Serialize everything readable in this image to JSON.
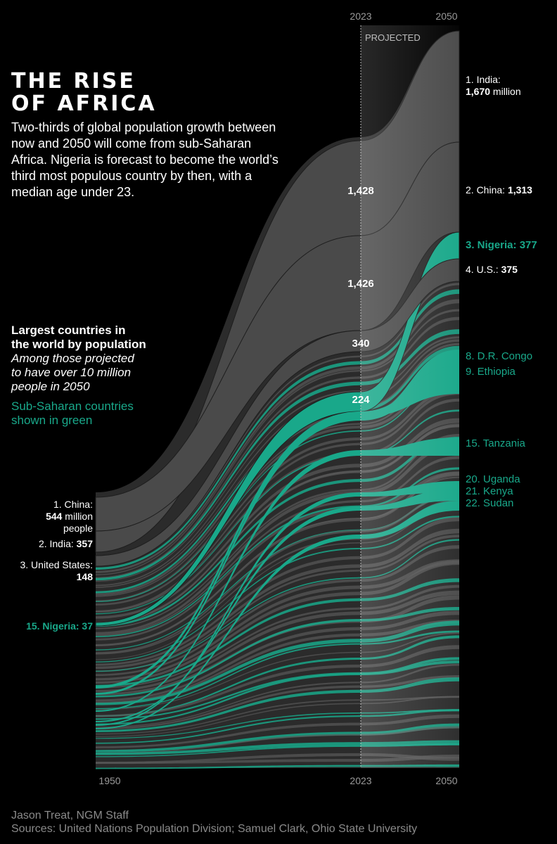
{
  "title_lines": [
    "THE RISE",
    "OF AFRICA"
  ],
  "intro": "Two-thirds of global population growth between now and 2050 will come from sub-Saharan Africa. Nigeria is forecast to become the world’s third most populous country by then, with a median age under 23.",
  "legend": {
    "title_lines": [
      "Largest countries in",
      "the world by population"
    ],
    "subtitle_lines": [
      "Among those projected",
      "to have over 10 million",
      "people in 2050"
    ],
    "green_note_lines": [
      "Sub-Saharan countries",
      "shown in green"
    ]
  },
  "credit": {
    "author": "Jason Treat, NGM Staff",
    "sources": "Sources: United Nations Population Division; Samuel Clark, Ohio State University"
  },
  "colors": {
    "background": "#000000",
    "stream_gray": "#4a4a4a",
    "sub_saharan_green": "#19a88a",
    "text_white": "#ffffff",
    "text_gray": "#8a8a8a"
  },
  "chart_data": {
    "type": "area",
    "projected_label": "PROJECTED",
    "x_ticks": [
      "1950",
      "2023",
      "2050"
    ],
    "top_ticks": [
      "2023",
      "2050"
    ],
    "units": "million people",
    "series": [
      {
        "name": "India",
        "values": [
          357,
          1428,
          1670
        ],
        "color": "gray"
      },
      {
        "name": "China",
        "values": [
          544,
          1426,
          1313
        ],
        "color": "gray"
      },
      {
        "name": "Nigeria",
        "values": [
          37,
          224,
          377
        ],
        "color": "green"
      },
      {
        "name": "U.S.",
        "values": [
          148,
          340,
          375
        ],
        "color": "gray"
      },
      {
        "name": "D.R. Congo",
        "color": "green"
      },
      {
        "name": "Ethiopia",
        "color": "green"
      },
      {
        "name": "Tanzania",
        "color": "green"
      },
      {
        "name": "Uganda",
        "color": "green"
      },
      {
        "name": "Kenya",
        "color": "green"
      },
      {
        "name": "Sudan",
        "color": "green"
      }
    ],
    "left_labels": [
      {
        "lines": [
          "1. China:",
          "544 million",
          "people"
        ],
        "bold_line": 1
      },
      {
        "prefix": "2. India: ",
        "value": "357"
      },
      {
        "lines": [
          "3. United States:",
          "148"
        ],
        "bold_line": 1
      },
      {
        "prefix": "15. Nigeria: ",
        "value": "37",
        "green": true
      }
    ],
    "mid_labels": [
      "1,428",
      "1,426",
      "340",
      "224"
    ],
    "right_labels": [
      {
        "lines": [
          "1. India:",
          "1,670 million"
        ],
        "bold_line": 1
      },
      {
        "prefix": "2. China: ",
        "value": "1,313"
      },
      {
        "prefix": "3. Nigeria: ",
        "value": "377",
        "green": true,
        "all_bold": true
      },
      {
        "prefix": "4. U.S.: ",
        "value": "375"
      },
      {
        "text": "8. D.R. Congo",
        "green": true
      },
      {
        "text": "9. Ethiopia",
        "green": true
      },
      {
        "text": "15. Tanzania",
        "green": true
      },
      {
        "text": "20. Uganda",
        "green": true
      },
      {
        "text": "21. Kenya",
        "green": true
      },
      {
        "text": "22. Sudan",
        "green": true
      }
    ]
  }
}
